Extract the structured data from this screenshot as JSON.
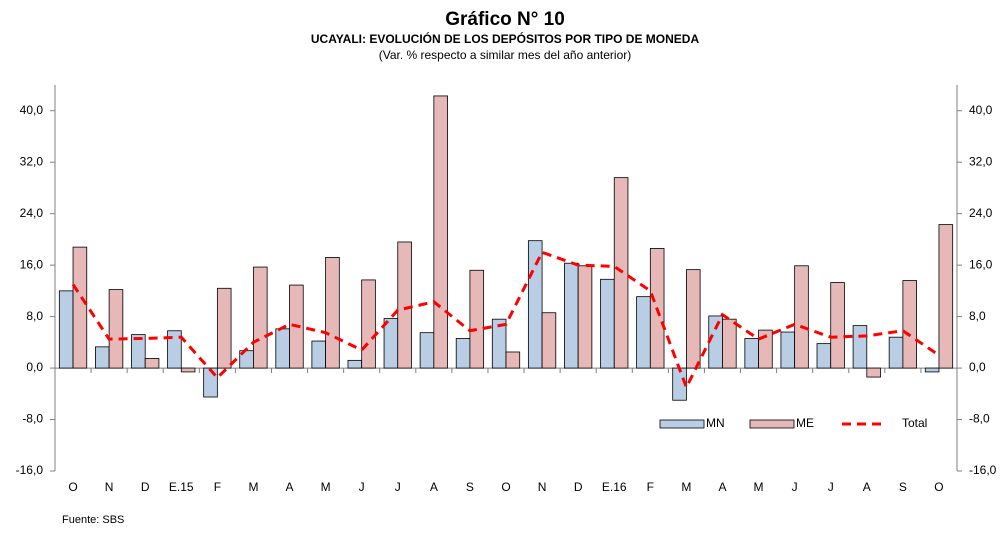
{
  "chart_data": {
    "type": "bar-line",
    "title": "Gráfico N° 10",
    "subtitle": "UCAYALI: EVOLUCIÓN DE LOS DEPÓSITOS POR TIPO DE MONEDA",
    "note": "(Var. % respecto a similar mes del año anterior)",
    "source": "Fuente: SBS",
    "categories": [
      "O",
      "N",
      "D",
      "E.15",
      "F",
      "M",
      "A",
      "M",
      "J",
      "J",
      "A",
      "S",
      "O",
      "N",
      "D",
      "E.16",
      "F",
      "M",
      "A",
      "M",
      "J",
      "J",
      "A",
      "S",
      "O"
    ],
    "series": [
      {
        "name": "MN",
        "type": "bar",
        "color": "#b9cde5",
        "values": [
          12.0,
          3.3,
          5.2,
          5.8,
          -4.5,
          2.7,
          6.1,
          4.2,
          1.2,
          7.7,
          5.5,
          4.6,
          7.6,
          19.8,
          16.3,
          13.8,
          11.1,
          -5.0,
          8.1,
          4.6,
          5.6,
          3.8,
          6.6,
          4.8,
          -0.6
        ]
      },
      {
        "name": "ME",
        "type": "bar",
        "color": "#e6b9b8",
        "values": [
          18.8,
          12.2,
          1.5,
          -0.6,
          12.4,
          15.7,
          12.9,
          17.2,
          13.7,
          19.6,
          42.3,
          15.2,
          2.5,
          8.6,
          15.9,
          29.6,
          18.6,
          15.3,
          7.6,
          5.9,
          15.9,
          13.3,
          -1.4,
          13.6,
          22.3
        ]
      },
      {
        "name": "Total",
        "type": "line",
        "color": "#ff0000",
        "values": [
          13.0,
          4.5,
          4.6,
          4.8,
          -1.5,
          4.0,
          6.8,
          5.5,
          2.8,
          9.0,
          10.3,
          5.8,
          6.8,
          18.0,
          16.0,
          15.8,
          12.0,
          -3.0,
          8.3,
          4.5,
          6.8,
          4.8,
          5.0,
          5.8,
          2.0
        ]
      }
    ],
    "ylim": [
      -16,
      44
    ],
    "yticks": [
      {
        "value": -16,
        "label": "-16,0"
      },
      {
        "value": -8,
        "label": "-8,0"
      },
      {
        "value": 0,
        "label": "0,0"
      },
      {
        "value": 8,
        "label": "8,0"
      },
      {
        "value": 16,
        "label": "16,0"
      },
      {
        "value": 24,
        "label": "24,0"
      },
      {
        "value": 32,
        "label": "32,0"
      },
      {
        "value": 40,
        "label": "40,0"
      }
    ],
    "y2lim": [
      -16,
      44
    ],
    "y2ticks": [
      {
        "value": -16,
        "label": "-16,0"
      },
      {
        "value": -8,
        "label": "-8,0"
      },
      {
        "value": 0,
        "label": "0,0"
      },
      {
        "value": 8,
        "label": "8,0"
      },
      {
        "value": 16,
        "label": "16,0"
      },
      {
        "value": 24,
        "label": "24,0"
      },
      {
        "value": 32,
        "label": "32,0"
      },
      {
        "value": 40,
        "label": "40,0"
      }
    ],
    "grid": false,
    "legend": "lower right"
  }
}
